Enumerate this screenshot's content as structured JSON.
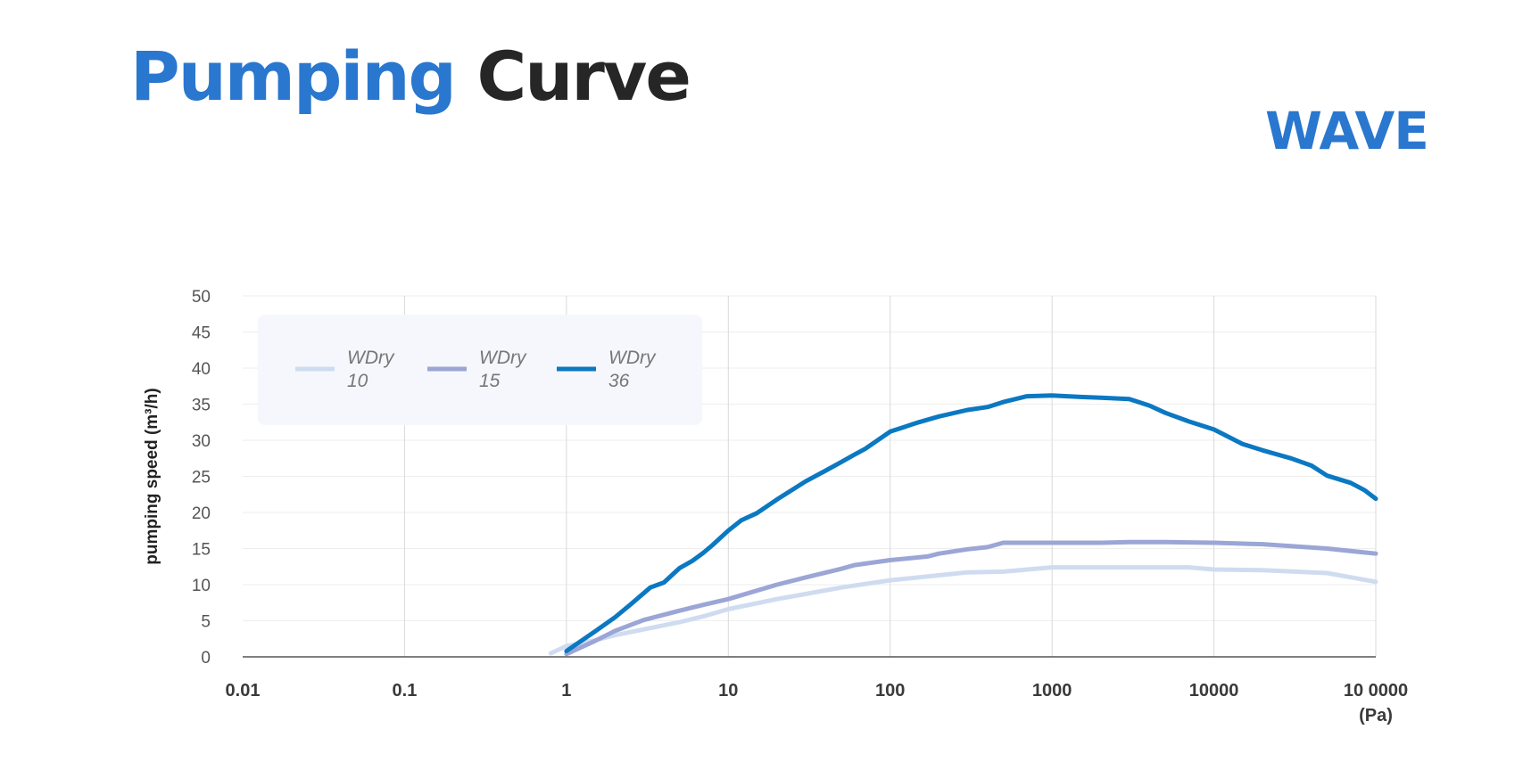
{
  "header": {
    "title_highlight": "Pumping",
    "title_rest": "Curve",
    "brand": "WAVE"
  },
  "colors": {
    "accent": "#2a77cf",
    "WDry 10": "#cfdcf0",
    "WDry 15": "#9ba6d6",
    "WDry 36": "#0b78c2"
  },
  "chart_data": {
    "type": "line",
    "x_scale": "log",
    "xlim": [
      0.01,
      100000
    ],
    "ylim": [
      0,
      50
    ],
    "ylabel": "pumping speed (m³/h)",
    "x_unit": "(Pa)",
    "x_ticks": [
      {
        "value": 0.01,
        "label": "0.01"
      },
      {
        "value": 0.1,
        "label": "0.1"
      },
      {
        "value": 1,
        "label": "1"
      },
      {
        "value": 10,
        "label": "10"
      },
      {
        "value": 100,
        "label": "100"
      },
      {
        "value": 1000,
        "label": "1000"
      },
      {
        "value": 10000,
        "label": "10000"
      },
      {
        "value": 100000,
        "label": "10 0000"
      }
    ],
    "y_ticks": [
      0,
      5,
      10,
      15,
      20,
      25,
      30,
      35,
      40,
      45,
      50
    ],
    "grid": {
      "vertical": true,
      "horizontal": true
    },
    "legend_position": "top-left",
    "series": [
      {
        "name": "WDry 10",
        "legend_line1": "WDry",
        "legend_line2": "10",
        "color": "#cfdcf0",
        "x": [
          0.8,
          1,
          1.5,
          2,
          3,
          5,
          7,
          10,
          20,
          30,
          50,
          100,
          200,
          300,
          500,
          1000,
          2000,
          5000,
          7000,
          10000,
          20000,
          50000,
          100000
        ],
        "y": [
          0.5,
          1.5,
          2.3,
          3.0,
          3.8,
          4.8,
          5.6,
          6.6,
          8.0,
          8.7,
          9.6,
          10.6,
          11.3,
          11.7,
          11.8,
          12.4,
          12.4,
          12.4,
          12.4,
          12.1,
          12.0,
          11.6,
          10.4
        ]
      },
      {
        "name": "WDry 15",
        "legend_line1": "WDry",
        "legend_line2": "15",
        "color": "#9ba6d6",
        "x": [
          1,
          1.5,
          2,
          3,
          5,
          7,
          10,
          20,
          30,
          50,
          60,
          100,
          170,
          200,
          300,
          400,
          500,
          1000,
          2000,
          3000,
          5000,
          10000,
          20000,
          50000,
          100000
        ],
        "y": [
          0.4,
          2.2,
          3.6,
          5.1,
          6.4,
          7.2,
          8.0,
          10.0,
          11.0,
          12.2,
          12.7,
          13.4,
          13.9,
          14.3,
          14.9,
          15.2,
          15.8,
          15.8,
          15.8,
          15.9,
          15.9,
          15.8,
          15.6,
          15.0,
          14.3
        ]
      },
      {
        "name": "WDry 36",
        "legend_line1": "WDry",
        "legend_line2": "36",
        "color": "#0b78c2",
        "x": [
          1,
          1.5,
          2,
          2.5,
          3.3,
          4,
          5,
          6,
          7,
          8,
          10,
          12,
          15,
          20,
          30,
          40,
          50,
          60,
          70,
          100,
          150,
          200,
          300,
          400,
          500,
          700,
          1000,
          1500,
          2000,
          3000,
          4000,
          5000,
          7000,
          10000,
          15000,
          20000,
          30000,
          40000,
          50000,
          70000,
          85000,
          100000
        ],
        "y": [
          0.8,
          3.5,
          5.5,
          7.3,
          9.6,
          10.3,
          12.3,
          13.3,
          14.4,
          15.5,
          17.5,
          18.9,
          19.9,
          21.8,
          24.3,
          25.8,
          27.0,
          28.0,
          28.8,
          31.2,
          32.5,
          33.3,
          34.2,
          34.6,
          35.3,
          36.1,
          36.2,
          36.0,
          35.9,
          35.7,
          34.8,
          33.8,
          32.6,
          31.5,
          29.5,
          28.6,
          27.5,
          26.5,
          25.1,
          24.1,
          23.1,
          21.9
        ]
      }
    ]
  }
}
